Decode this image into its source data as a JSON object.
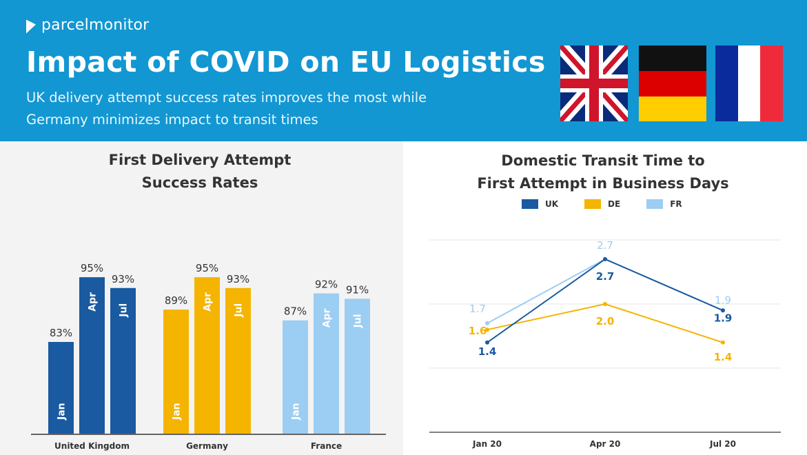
{
  "header": {
    "brand": "parcelmonitor",
    "title": "Impact of COVID on EU Logistics",
    "subtitle_line1": "UK delivery attempt success rates improves the most while",
    "subtitle_line2": "Germany minimizes impact to transit times",
    "flags": [
      "uk-flag",
      "germany-flag",
      "france-flag"
    ]
  },
  "colors": {
    "header_bg": "#1297d2",
    "uk": "#1a5aa0",
    "de": "#f4b400",
    "fr": "#9ccdf2"
  },
  "chart_data": [
    {
      "type": "bar",
      "title_line1": "First Delivery Attempt",
      "title_line2": "Success Rates",
      "categories": [
        "United Kingdom",
        "Germany",
        "France"
      ],
      "series": [
        {
          "name": "Jan",
          "values": [
            83,
            89,
            87
          ]
        },
        {
          "name": "Apr",
          "values": [
            95,
            95,
            92
          ]
        },
        {
          "name": "Jul",
          "values": [
            93,
            93,
            91
          ]
        }
      ],
      "value_labels": [
        [
          "83%",
          "95%",
          "93%"
        ],
        [
          "89%",
          "95%",
          "93%"
        ],
        [
          "87%",
          "92%",
          "91%"
        ]
      ],
      "unit": "%",
      "ylim": [
        66,
        100
      ],
      "grid": false
    },
    {
      "type": "line",
      "title_line1": "Domestic Transit Time to",
      "title_line2": "First Attempt in Business Days",
      "x": [
        "Jan 20",
        "Apr 20",
        "Jul 20"
      ],
      "series": [
        {
          "name": "UK",
          "values": [
            1.4,
            2.7,
            1.9
          ],
          "labels": [
            "1.4",
            "2.7",
            "1.9"
          ]
        },
        {
          "name": "DE",
          "values": [
            1.6,
            2.0,
            1.4
          ],
          "labels": [
            "1.6",
            "2.0",
            "1.4"
          ]
        },
        {
          "name": "FR",
          "values": [
            1.7,
            2.7,
            1.9
          ],
          "labels": [
            "1.7",
            "2.7",
            "1.9"
          ]
        }
      ],
      "ylim": [
        0,
        3
      ],
      "grid": true,
      "legend_position": "top-center"
    }
  ]
}
